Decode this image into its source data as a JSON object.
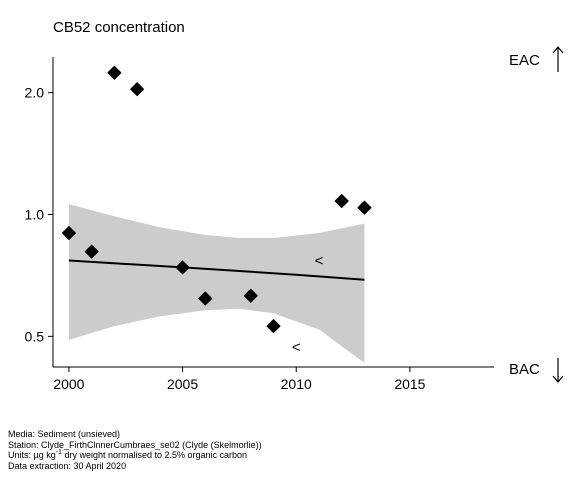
{
  "chart_data": {
    "type": "scatter",
    "title": "CB52 concentration",
    "xlabel": "",
    "ylabel": "",
    "y_scale": "log",
    "xlim": [
      1999.3,
      2018.7
    ],
    "ylim": [
      0.42,
      2.45
    ],
    "x_ticks": [
      2000,
      2005,
      2010,
      2015
    ],
    "x_tick_labels": [
      "2000",
      "2005",
      "2010",
      "2015"
    ],
    "y_ticks": [
      0.5,
      1.0,
      2.0
    ],
    "y_tick_labels": [
      "0.5",
      "1.0",
      "2.0"
    ],
    "grid": false,
    "points": [
      {
        "x": 2000,
        "y": 0.9
      },
      {
        "x": 2001,
        "y": 0.81
      },
      {
        "x": 2002,
        "y": 2.24
      },
      {
        "x": 2003,
        "y": 2.04
      },
      {
        "x": 2005,
        "y": 0.74
      },
      {
        "x": 2006,
        "y": 0.62
      },
      {
        "x": 2008,
        "y": 0.63
      },
      {
        "x": 2009,
        "y": 0.53
      },
      {
        "x": 2012,
        "y": 1.08
      },
      {
        "x": 2013,
        "y": 1.04
      }
    ],
    "less_than_markers": [
      {
        "x": 2011,
        "y": 0.77,
        "label": "<"
      },
      {
        "x": 2010,
        "y": 0.47,
        "label": "<"
      }
    ],
    "trend": {
      "x": [
        2000,
        2005,
        2010,
        2013
      ],
      "y": [
        0.77,
        0.74,
        0.71,
        0.69
      ],
      "lower": [
        0.49,
        0.57,
        0.56,
        0.43
      ],
      "upper": [
        1.06,
        0.94,
        0.87,
        0.95
      ],
      "band_points": [
        {
          "x": 2000,
          "lower": 0.49,
          "upper": 1.06
        },
        {
          "x": 2002,
          "lower": 0.53,
          "upper": 0.99
        },
        {
          "x": 2004,
          "lower": 0.56,
          "upper": 0.93
        },
        {
          "x": 2006,
          "lower": 0.58,
          "upper": 0.89
        },
        {
          "x": 2007.5,
          "lower": 0.585,
          "upper": 0.875
        },
        {
          "x": 2009,
          "lower": 0.57,
          "upper": 0.875
        },
        {
          "x": 2011,
          "lower": 0.52,
          "upper": 0.9
        },
        {
          "x": 2013,
          "lower": 0.43,
          "upper": 0.95
        }
      ]
    },
    "assessment_labels": [
      {
        "text": "EAC",
        "arrow": "up"
      },
      {
        "text": "BAC",
        "arrow": "down"
      }
    ],
    "colors": {
      "band": "#cccccc",
      "points": "#000000",
      "line": "#000000"
    }
  },
  "footer": {
    "media": "Media: Sediment (unsieved)",
    "station": "Station: Clyde_FirthClnnerCumbraes_se02 (Clyde (Skelmorlie))",
    "units_prefix": "Units: ",
    "units_mu": "µg kg",
    "units_sup": "-1",
    "units_suffix": " dry weight normalised to 2.5% organic carbon",
    "extraction": "Data extraction: 30 April 2020"
  }
}
